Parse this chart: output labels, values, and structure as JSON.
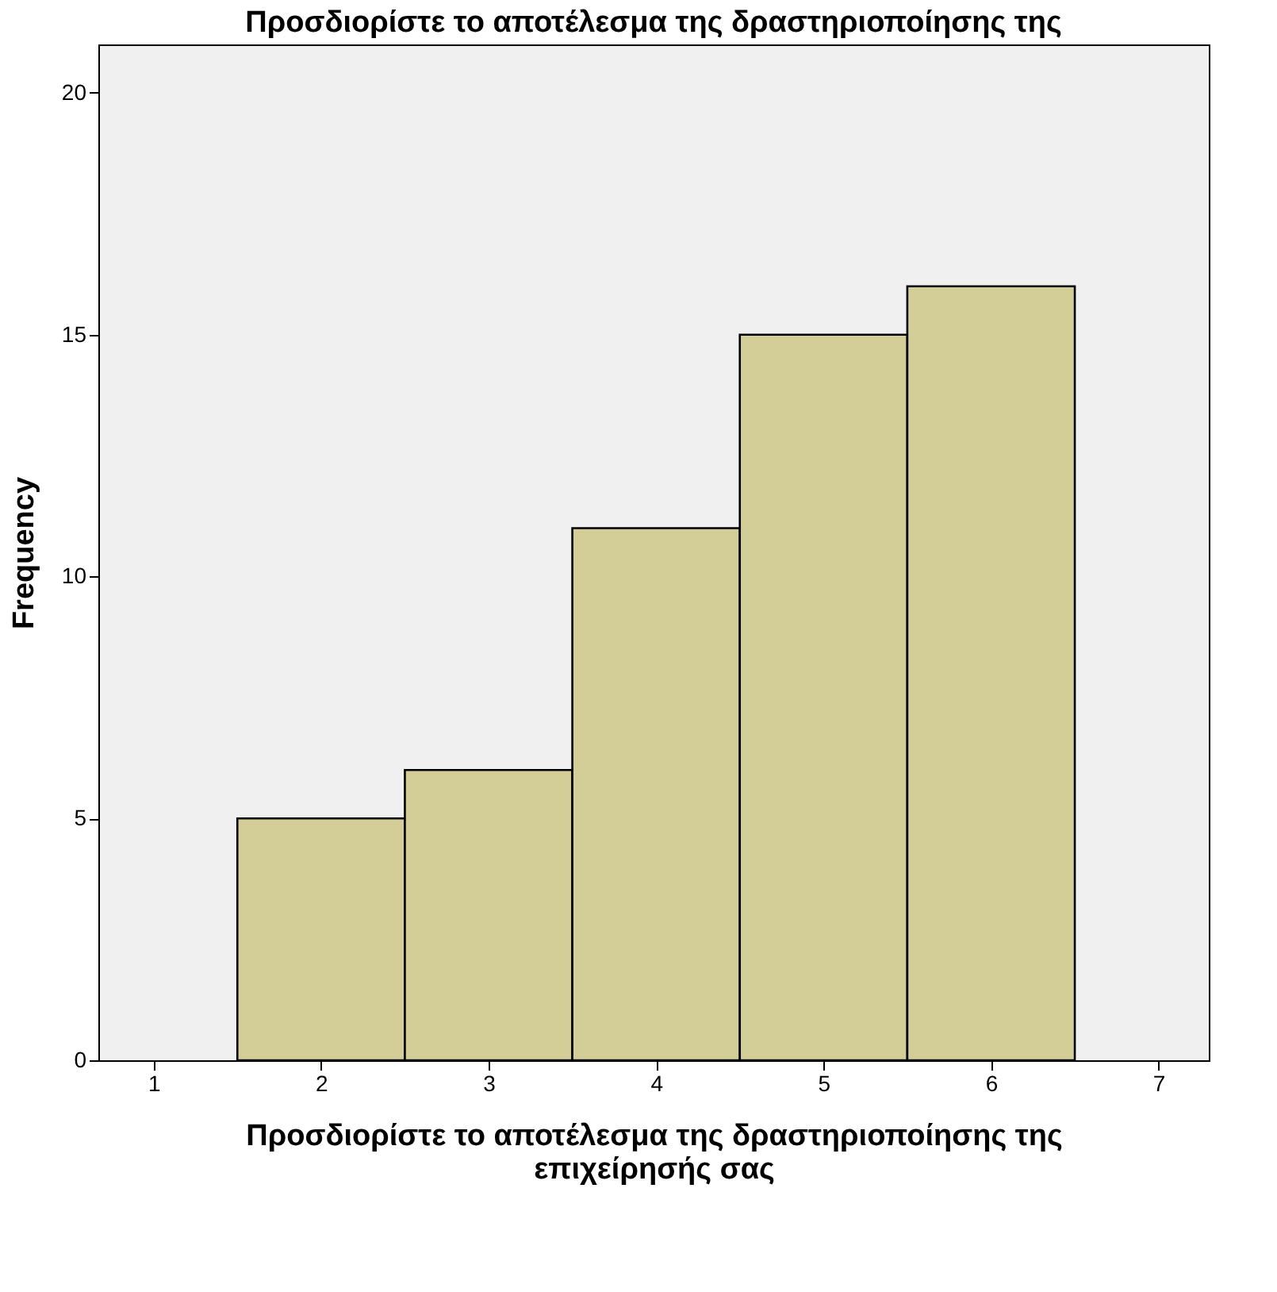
{
  "chart_data": {
    "type": "histogram",
    "title": "Προσδιορίστε το αποτέλεσμα της δραστηριοποίησης της",
    "xlabel": "Προσδιορίστε το αποτέλεσμα της δραστηριοποίησης της επιχείρησής σας",
    "ylabel": "Frequency",
    "bins": [
      1.5,
      2.5,
      3.5,
      4.5,
      5.5,
      6.5
    ],
    "values": [
      5,
      6,
      11,
      15,
      16
    ],
    "color": "#d3ce97",
    "xlim": [
      0.67,
      7.3
    ],
    "xticks": [
      1,
      2,
      3,
      4,
      5,
      6,
      7
    ],
    "ylim": [
      0,
      21
    ],
    "yticks": [
      0,
      5,
      10,
      15,
      20
    ],
    "grid": false
  }
}
